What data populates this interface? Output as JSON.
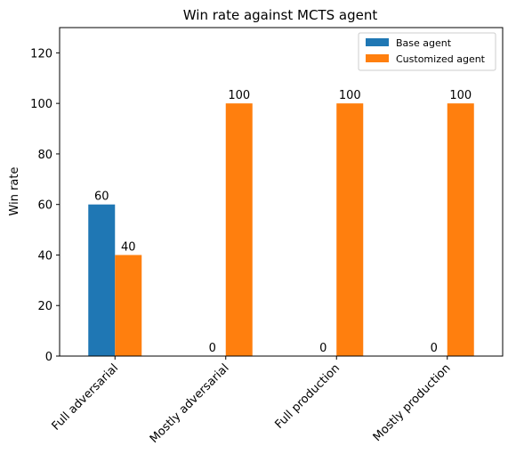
{
  "chart_data": {
    "type": "bar",
    "title": "Win rate against MCTS agent",
    "xlabel": "",
    "ylabel": "Win rate",
    "categories": [
      "Full adversarial",
      "Mostly adversarial",
      "Full production",
      "Mostly production"
    ],
    "series": [
      {
        "name": "Base agent",
        "values": [
          60,
          0,
          0,
          0
        ],
        "color": "#1f77b4"
      },
      {
        "name": "Customized agent",
        "values": [
          40,
          100,
          100,
          100
        ],
        "color": "#ff7f0e"
      }
    ],
    "ylim": [
      0,
      130
    ],
    "yticks": [
      0,
      20,
      40,
      60,
      80,
      100,
      120
    ],
    "xtick_rotation": 45,
    "grid": false,
    "legend_position": "top-right",
    "data_labels": true
  }
}
